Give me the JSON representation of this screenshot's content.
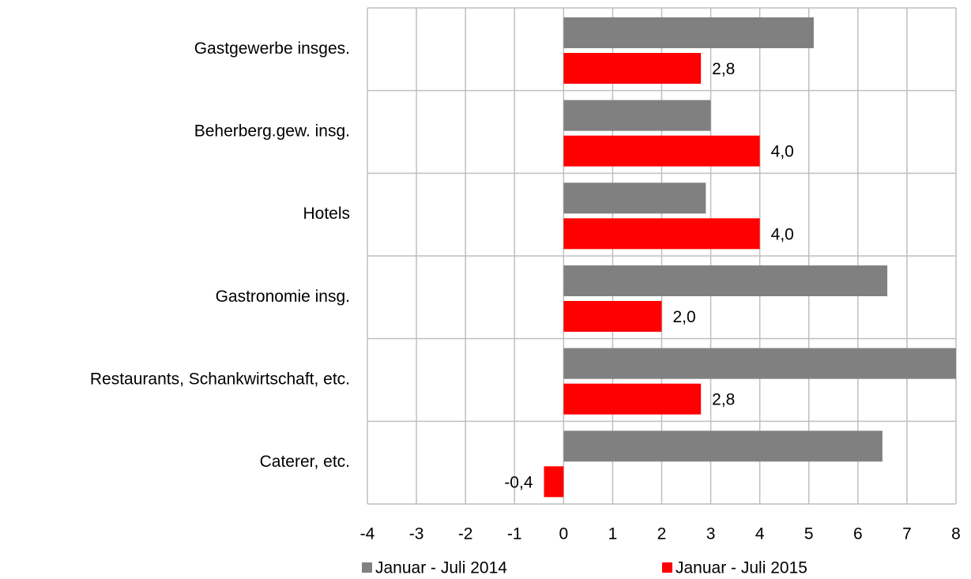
{
  "chart_data": {
    "type": "hbar",
    "categories": [
      "Gastgewerbe insges.",
      "Beherberg.gew. insg.",
      "Hotels",
      "Gastronomie insg.",
      "Restaurants, Schankwirtschaft, etc.",
      "Caterer, etc."
    ],
    "series": [
      {
        "name": "Januar - Juli 2014",
        "color": "#808080",
        "values": [
          5.1,
          3.0,
          2.9,
          6.6,
          8.0,
          6.5
        ]
      },
      {
        "name": "Januar - Juli 2015",
        "color": "#ff0000",
        "values": [
          2.8,
          4.0,
          4.0,
          2.0,
          2.8,
          -0.4
        ],
        "value_labels": [
          "2,8",
          "4,0",
          "4,0",
          "2,0",
          "2,8",
          "-0,4"
        ]
      }
    ],
    "xlim": [
      -4,
      8
    ],
    "xticks": [
      -4,
      -3,
      -2,
      -1,
      0,
      1,
      2,
      3,
      4,
      5,
      6,
      7,
      8
    ],
    "grid": true,
    "legend": "bottom"
  }
}
